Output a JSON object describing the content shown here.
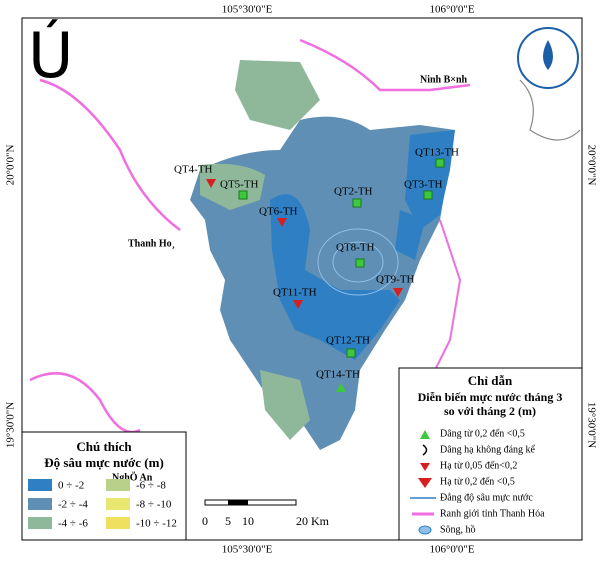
{
  "north_symbol": "Ú",
  "grid_labels": {
    "top": [
      "105°30'0\"E",
      "106°0'0\"E"
    ],
    "bottom": [
      "105°30'0\"E",
      "106°0'0\"E"
    ],
    "left": [
      "20°0'0\"N",
      "19°30'0\"N"
    ],
    "right": [
      "20°0'0\"N",
      "19°30'0\"N"
    ]
  },
  "places": [
    "Ninh B×nh",
    "Thanh Ho¸",
    "NghÖ An"
  ],
  "stations": [
    {
      "label": "QT4-TH",
      "symbol": "down"
    },
    {
      "label": "QT5-TH",
      "symbol": "square"
    },
    {
      "label": "QT6-TH",
      "symbol": "down"
    },
    {
      "label": "QT2-TH",
      "symbol": "square"
    },
    {
      "label": "QT13-TH",
      "symbol": "square"
    },
    {
      "label": "QT3-TH",
      "symbol": "square"
    },
    {
      "label": "QT8-TH",
      "symbol": "square"
    },
    {
      "label": "QT9-TH",
      "symbol": "down"
    },
    {
      "label": "QT11-TH",
      "symbol": "down"
    },
    {
      "label": "QT12-TH",
      "symbol": "square"
    },
    {
      "label": "QT14-TH",
      "symbol": "up"
    }
  ],
  "legend_depth": {
    "title": "Chú thích",
    "subtitle": "Độ sâu mực nước (m)",
    "items": [
      {
        "label": "0 ÷ -2",
        "color": "#2f7fc4"
      },
      {
        "label": "-6 ÷ -8",
        "color": "#b8d08a"
      },
      {
        "label": "-2 ÷ -4",
        "color": "#5f8fb4"
      },
      {
        "label": "-8 ÷ -10",
        "color": "#e8e870"
      },
      {
        "label": "-4 ÷ -6",
        "color": "#8fb89b"
      },
      {
        "label": "-10 ÷ -12",
        "color": "#f0e060"
      }
    ]
  },
  "scale": [
    "0",
    "5",
    "10",
    "20 Km"
  ],
  "legend_change": {
    "title": "Chỉ dẫn",
    "subtitle": [
      "Diễn biến mực nước tháng 3",
      "so với tháng 2 (m)"
    ],
    "items": [
      "Dâng từ 0,2 đến <0,5",
      "Dâng hạ không đáng kể",
      "Hạ từ 0,05 đến<0,2",
      "Hạ từ 0,2 đến <0,5",
      "Đẳng độ sâu mực nước",
      "Ranh giới tỉnh Thanh Hóa",
      "Sông, hồ"
    ]
  }
}
